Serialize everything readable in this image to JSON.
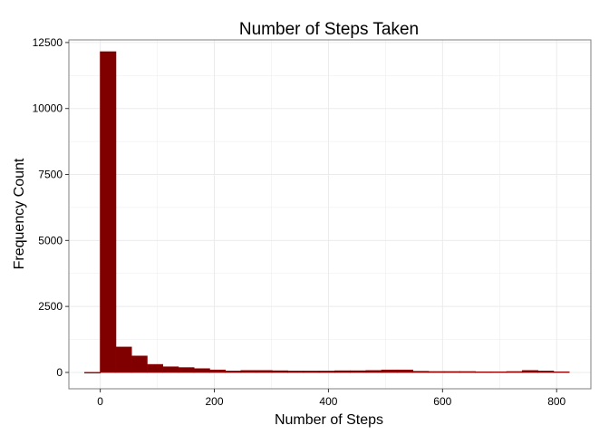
{
  "chart_data": {
    "type": "bar",
    "title": "Number of Steps Taken",
    "xlabel": "Number of Steps",
    "ylabel": "Frequency Count",
    "xlim": [
      -55,
      860
    ],
    "ylim": [
      -620,
      12600
    ],
    "x_ticks": [
      0,
      200,
      400,
      600,
      800
    ],
    "y_ticks": [
      0,
      2500,
      5000,
      7500,
      10000,
      12500
    ],
    "x_tick_labels": [
      "0",
      "200",
      "400",
      "600",
      "800"
    ],
    "y_tick_labels": [
      "0",
      "2500",
      "5000",
      "7500",
      "10000",
      "12500"
    ],
    "grid": true,
    "legend": "none",
    "bin_width": 27.4,
    "bin_starts": [
      -27.4,
      0,
      27.4,
      54.8,
      82.2,
      109.6,
      137,
      164.4,
      191.8,
      219.2,
      246.6,
      274,
      301.4,
      328.8,
      356.2,
      383.6,
      411,
      438.4,
      465.8,
      493.2,
      520.6,
      548,
      575.4,
      602.8,
      630.2,
      657.6,
      685,
      712.4,
      739.8,
      767.2,
      794.6
    ],
    "values": [
      0,
      12150,
      960,
      620,
      300,
      210,
      180,
      140,
      90,
      50,
      70,
      70,
      60,
      50,
      50,
      50,
      60,
      60,
      70,
      90,
      90,
      40,
      30,
      30,
      30,
      20,
      20,
      30,
      70,
      50,
      20
    ],
    "colors": {
      "fill": "#800000",
      "outline": "#8b0000",
      "panel_border": "#7f7f7f",
      "grid": "#ebebeb"
    }
  }
}
